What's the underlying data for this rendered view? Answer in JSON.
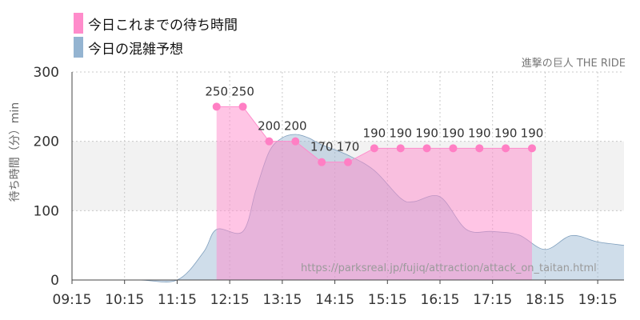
{
  "legend": [
    {
      "label": "今日これまでの待ち時間",
      "color": "#ff8ccb"
    },
    {
      "label": "今日の混雑予想",
      "color": "#94b4d1"
    }
  ],
  "chart_title": "進撃の巨人 THE RIDE",
  "watermark": "https://parksreal.jp/fujiq/attraction/attack_on_taitan.html",
  "chart_data": {
    "type": "area",
    "title": "進撃の巨人 THE RIDE",
    "ylabel": "待ち時間（分）min",
    "xlabel": "",
    "ylim": [
      0,
      300
    ],
    "yticks": [
      "0",
      "100",
      "200",
      "300"
    ],
    "x_ticks": [
      "09:15",
      "10:15",
      "11:15",
      "12:15",
      "13:15",
      "14:15",
      "15:15",
      "16:15",
      "17:15",
      "18:15",
      "19:15"
    ],
    "x_range": [
      "09:15",
      "19:45"
    ],
    "grid": true,
    "shaded_band": [
      100,
      200
    ],
    "series": [
      {
        "name": "今日これまでの待ち時間",
        "color": "#ff8ccb",
        "points": [
          {
            "x": "12:00",
            "y": 250
          },
          {
            "x": "12:30",
            "y": 250
          },
          {
            "x": "13:00",
            "y": 200
          },
          {
            "x": "13:30",
            "y": 200
          },
          {
            "x": "14:00",
            "y": 170
          },
          {
            "x": "14:30",
            "y": 170
          },
          {
            "x": "15:00",
            "y": 190
          },
          {
            "x": "15:30",
            "y": 190
          },
          {
            "x": "16:00",
            "y": 190
          },
          {
            "x": "16:30",
            "y": 190
          },
          {
            "x": "17:00",
            "y": 190
          },
          {
            "x": "17:30",
            "y": 190
          },
          {
            "x": "18:00",
            "y": 190
          }
        ]
      },
      {
        "name": "今日の混雑予想",
        "color": "#94b4d1",
        "points": [
          {
            "x": "09:15",
            "y": 0
          },
          {
            "x": "10:30",
            "y": 0
          },
          {
            "x": "11:15",
            "y": 0
          },
          {
            "x": "11:45",
            "y": 40
          },
          {
            "x": "12:00",
            "y": 73
          },
          {
            "x": "12:30",
            "y": 70
          },
          {
            "x": "12:45",
            "y": 130
          },
          {
            "x": "13:00",
            "y": 185
          },
          {
            "x": "13:15",
            "y": 205
          },
          {
            "x": "13:30",
            "y": 210
          },
          {
            "x": "13:45",
            "y": 205
          },
          {
            "x": "14:00",
            "y": 195
          },
          {
            "x": "14:30",
            "y": 180
          },
          {
            "x": "15:00",
            "y": 158
          },
          {
            "x": "15:30",
            "y": 118
          },
          {
            "x": "15:45",
            "y": 113
          },
          {
            "x": "16:15",
            "y": 120
          },
          {
            "x": "16:45",
            "y": 73
          },
          {
            "x": "17:15",
            "y": 70
          },
          {
            "x": "17:45",
            "y": 65
          },
          {
            "x": "18:15",
            "y": 44
          },
          {
            "x": "18:45",
            "y": 64
          },
          {
            "x": "19:15",
            "y": 55
          },
          {
            "x": "19:45",
            "y": 50
          }
        ]
      }
    ]
  }
}
